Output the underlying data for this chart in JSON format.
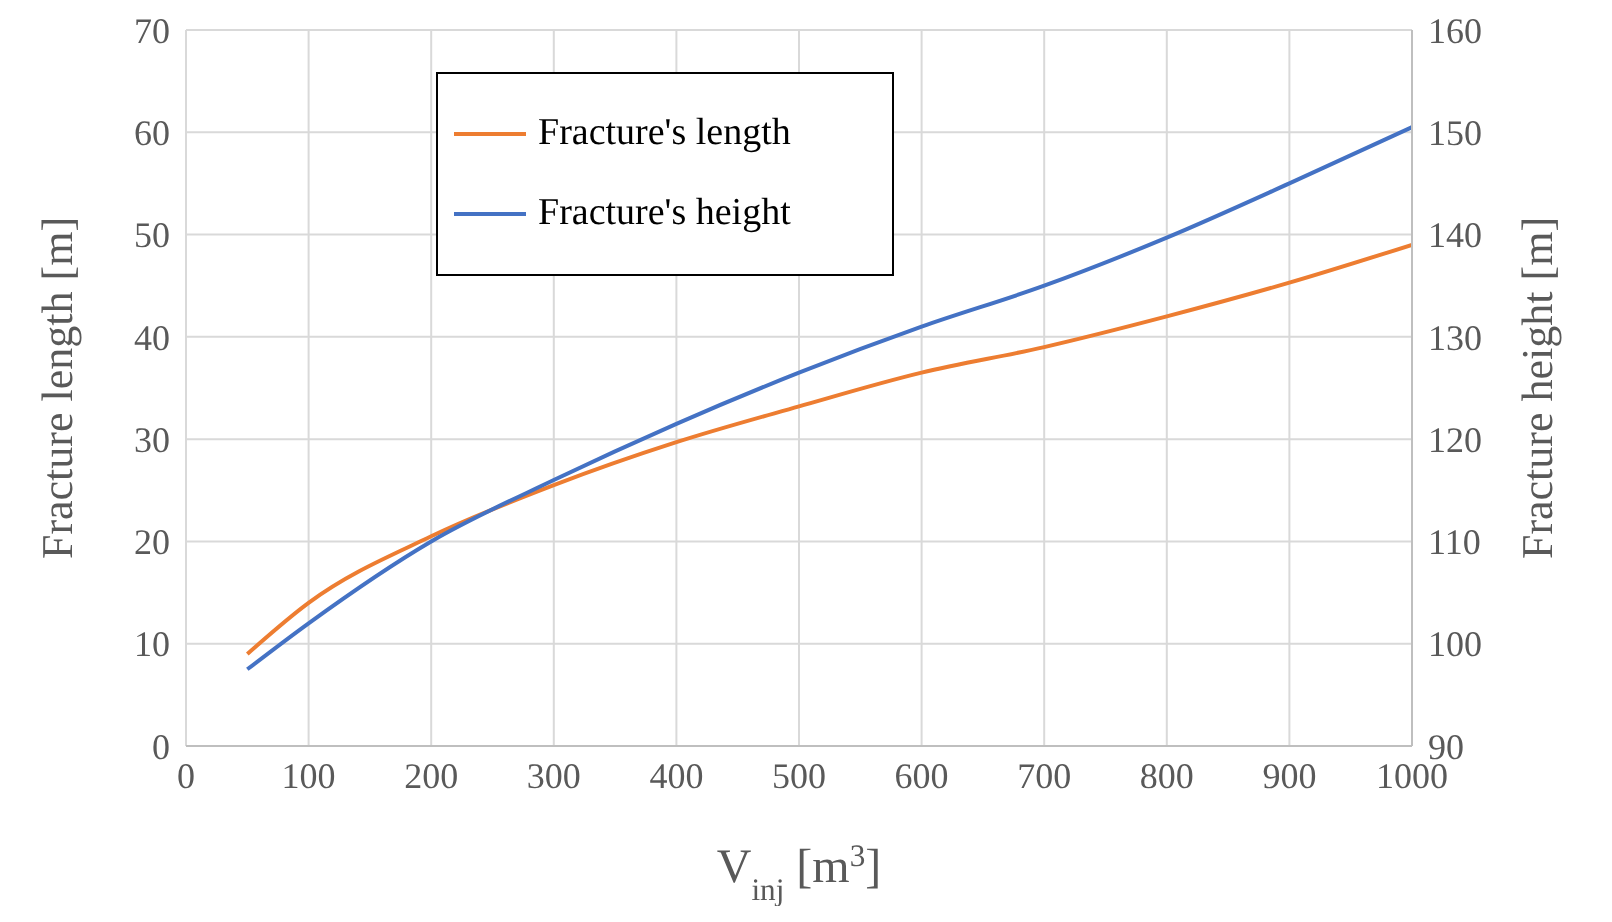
{
  "chart_data": {
    "type": "line",
    "xlabel": "V$_{inj}$ [m$^{3}$]",
    "ylabel": "Fracture length [m]",
    "y2label": "Fracture height [m]",
    "x": [
      50,
      100,
      200,
      300,
      400,
      500,
      600,
      700,
      800,
      900,
      1000
    ],
    "series": [
      {
        "name": "Fracture's length",
        "color": "#ed7d31",
        "values": [
          9,
          14,
          20.5,
          25.5,
          29.7,
          33.2,
          36.5,
          39,
          42,
          45.3,
          49
        ]
      },
      {
        "name": "Fracture's height",
        "color": "#4472c4",
        "axis": "y2",
        "values": [
          97.5,
          102,
          110,
          116,
          121.5,
          126.5,
          131,
          135,
          139.7,
          145,
          150.5
        ]
      }
    ],
    "xlim": [
      0,
      1000
    ],
    "xticks": [
      0,
      100,
      200,
      300,
      400,
      500,
      600,
      700,
      800,
      900,
      1000
    ],
    "ylim": [
      0,
      70
    ],
    "yticks": [
      0,
      10,
      20,
      30,
      40,
      50,
      60,
      70
    ],
    "y2lim": [
      90,
      160
    ],
    "y2ticks": [
      90,
      100,
      110,
      120,
      130,
      140,
      150,
      160
    ],
    "grid": true,
    "legend": "top left",
    "marker": "none",
    "line_style": "solid"
  }
}
